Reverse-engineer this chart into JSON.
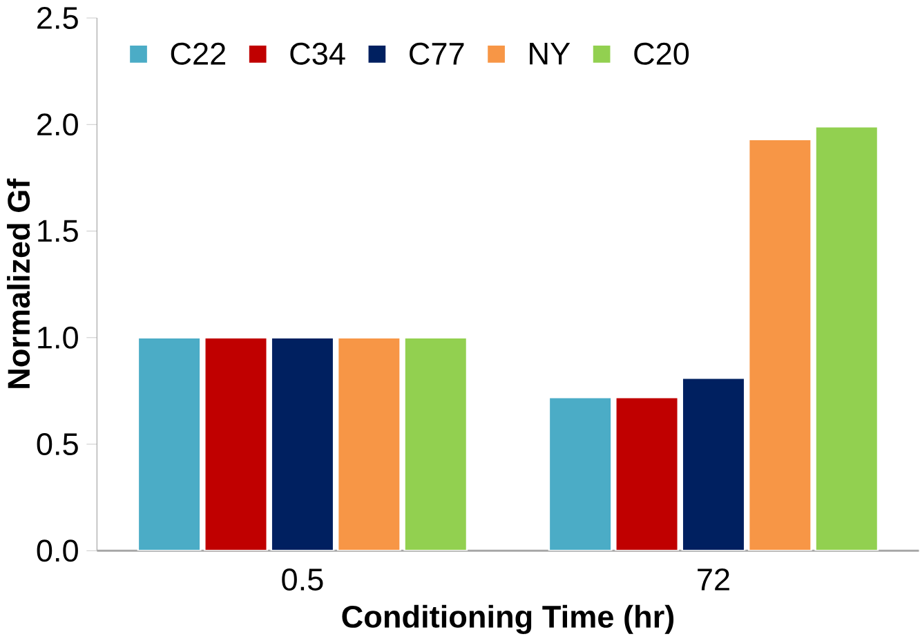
{
  "chart_data": {
    "type": "bar",
    "xlabel": "Conditioning Time (hr)",
    "ylabel": "Normalized Gf",
    "categories": [
      "0.5",
      "72"
    ],
    "series": [
      {
        "name": "C22",
        "color": "#4bacc6",
        "values": [
          1.0,
          0.72
        ]
      },
      {
        "name": "C34",
        "color": "#c00000",
        "values": [
          1.0,
          0.72
        ]
      },
      {
        "name": "C77",
        "color": "#002060",
        "values": [
          1.0,
          0.81
        ]
      },
      {
        "name": "NY",
        "color": "#f79646",
        "values": [
          1.0,
          1.93
        ]
      },
      {
        "name": "C20",
        "color": "#92d050",
        "values": [
          1.0,
          1.99
        ]
      }
    ],
    "ylim": [
      0,
      2.5
    ],
    "yticks": [
      {
        "value": 0,
        "label": "0.0"
      },
      {
        "value": 0.5,
        "label": "0.5"
      },
      {
        "value": 1.0,
        "label": "1.0"
      },
      {
        "value": 1.5,
        "label": "1.5"
      },
      {
        "value": 2.0,
        "label": "2.0"
      },
      {
        "value": 2.5,
        "label": "2.5"
      }
    ],
    "legend": "top left",
    "grid": false
  }
}
